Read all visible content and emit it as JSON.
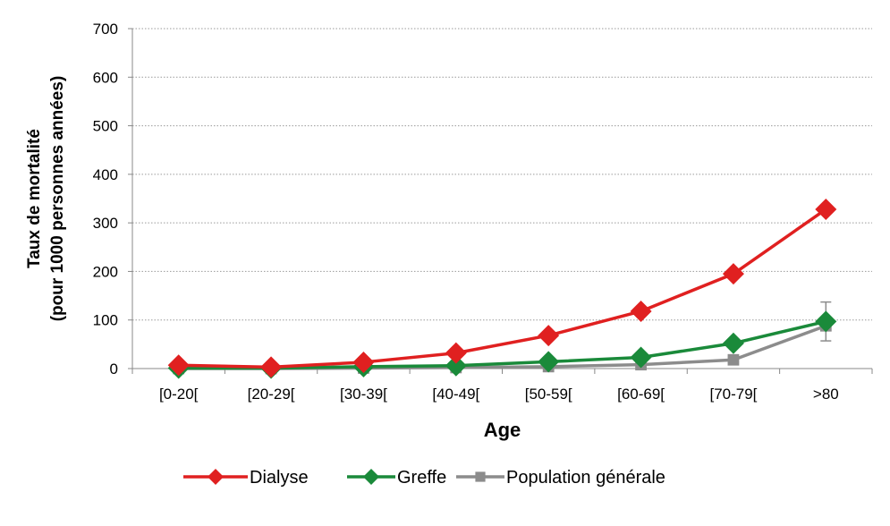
{
  "chart_data": {
    "type": "line",
    "title": "",
    "xlabel": "Age",
    "ylabel_lines": [
      "Taux de mortalité",
      "(pour 1000 personnes années)"
    ],
    "categories": [
      "[0-20[",
      "[20-29[",
      "[30-39[",
      "[40-49[",
      "[50-59[",
      "[60-69[",
      "[70-79[",
      ">80"
    ],
    "ylim": [
      0,
      700
    ],
    "yticks": [
      0,
      100,
      200,
      300,
      400,
      500,
      600,
      700
    ],
    "grid": "horizontal dotted",
    "legend_position": "bottom",
    "series": [
      {
        "name": "Dialyse",
        "color": "#e02020",
        "marker": "diamond",
        "values": [
          7,
          3,
          13,
          32,
          68,
          118,
          195,
          328
        ]
      },
      {
        "name": "Greffe",
        "color": "#1a8a3a",
        "marker": "diamond",
        "values": [
          1,
          1,
          4,
          6,
          14,
          23,
          52,
          97
        ]
      },
      {
        "name": "Population générale",
        "color": "#8c8c8c",
        "marker": "square",
        "values": [
          0,
          0,
          1,
          2,
          4,
          8,
          18,
          88
        ],
        "error_bars": [
          null,
          null,
          null,
          null,
          null,
          null,
          null,
          [
            57,
            137
          ]
        ]
      }
    ]
  }
}
